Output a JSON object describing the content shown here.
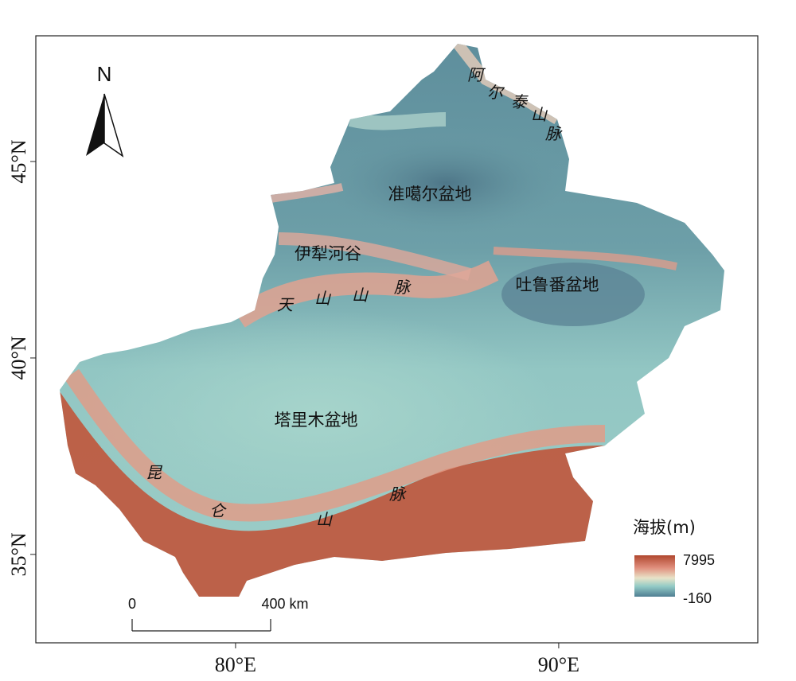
{
  "map": {
    "xlim": [
      73.82,
      96.16
    ],
    "ylim": [
      32.75,
      48.2
    ],
    "xticks": [
      {
        "value": 80,
        "label": "80°E"
      },
      {
        "value": 90,
        "label": "90°E"
      }
    ],
    "yticks": [
      {
        "value": 35,
        "label": "35°N"
      },
      {
        "value": 40,
        "label": "40°N"
      },
      {
        "value": 45,
        "label": "45°N"
      }
    ],
    "north_label": "N",
    "regions": [
      "准噶尔盆地",
      "伊犁河谷",
      "吐鲁番盆地",
      "塔里木盆地"
    ],
    "mountains": [
      {
        "chars": [
          "阿",
          "尔",
          "泰",
          "山",
          "脉"
        ]
      },
      {
        "chars": [
          "天",
          "山",
          "山",
          "脉"
        ]
      },
      {
        "chars": [
          "昆",
          "仑",
          "山",
          "脉"
        ]
      }
    ],
    "legend": {
      "title": "海拔(m)",
      "max": 7995,
      "min": -160
    },
    "scale_bar": {
      "ticks": [
        0,
        {
          "value": 400,
          "label": "400 km"
        }
      ]
    }
  }
}
